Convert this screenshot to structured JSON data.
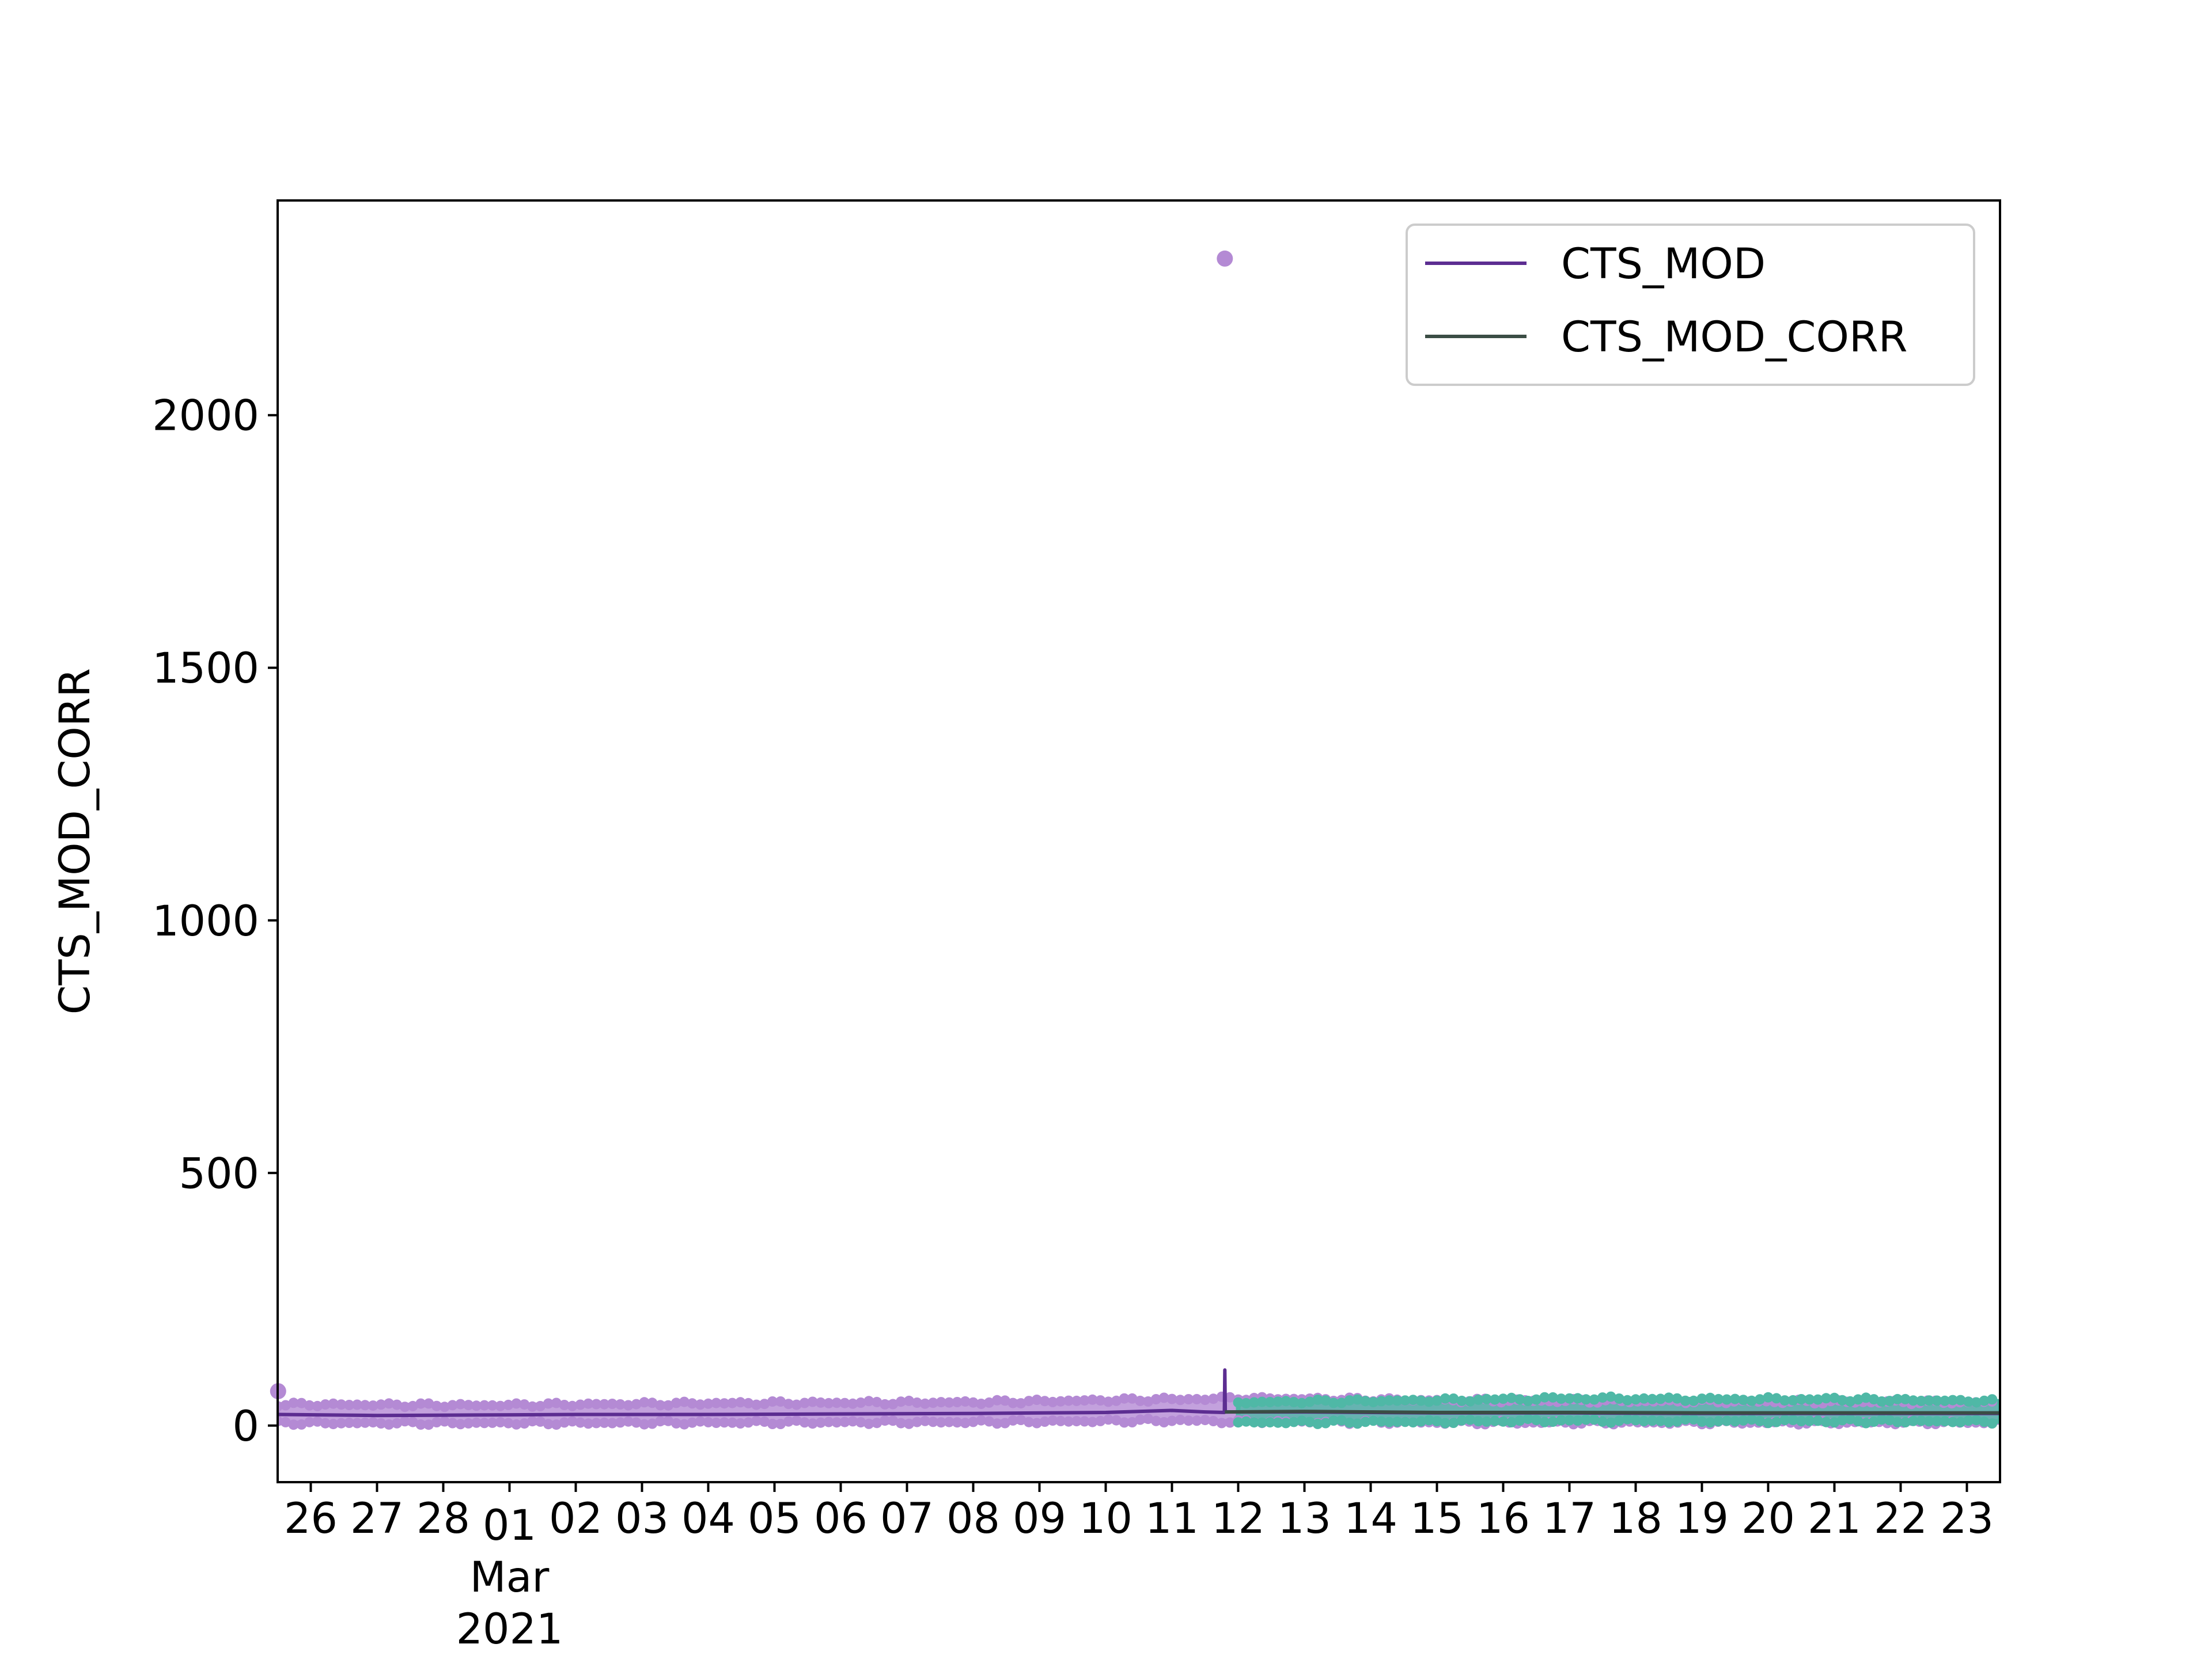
{
  "chart_data": {
    "type": "line",
    "title": "",
    "xlabel": "",
    "ylabel": "CTS_MOD_CORR",
    "x_start": "2021-02-25T12:00",
    "x_end": "2021-03-23T12:00",
    "ylim": [
      -112,
      2425
    ],
    "yticks": [
      0,
      500,
      1000,
      1500,
      2000
    ],
    "xticks": [
      {
        "date": "2021-02-26",
        "label": "26"
      },
      {
        "date": "2021-02-27",
        "label": "27"
      },
      {
        "date": "2021-02-28",
        "label": "28"
      },
      {
        "date": "2021-03-01",
        "label": "01"
      },
      {
        "date": "2021-03-02",
        "label": "02"
      },
      {
        "date": "2021-03-03",
        "label": "03"
      },
      {
        "date": "2021-03-04",
        "label": "04"
      },
      {
        "date": "2021-03-05",
        "label": "05"
      },
      {
        "date": "2021-03-06",
        "label": "06"
      },
      {
        "date": "2021-03-07",
        "label": "07"
      },
      {
        "date": "2021-03-08",
        "label": "08"
      },
      {
        "date": "2021-03-09",
        "label": "09"
      },
      {
        "date": "2021-03-10",
        "label": "10"
      },
      {
        "date": "2021-03-11",
        "label": "11"
      },
      {
        "date": "2021-03-12",
        "label": "12"
      },
      {
        "date": "2021-03-13",
        "label": "13"
      },
      {
        "date": "2021-03-14",
        "label": "14"
      },
      {
        "date": "2021-03-15",
        "label": "15"
      },
      {
        "date": "2021-03-16",
        "label": "16"
      },
      {
        "date": "2021-03-17",
        "label": "17"
      },
      {
        "date": "2021-03-18",
        "label": "18"
      },
      {
        "date": "2021-03-19",
        "label": "19"
      },
      {
        "date": "2021-03-20",
        "label": "20"
      },
      {
        "date": "2021-03-21",
        "label": "21"
      },
      {
        "date": "2021-03-22",
        "label": "22"
      },
      {
        "date": "2021-03-23",
        "label": "23"
      }
    ],
    "month_label": "Mar",
    "year_label": "2021",
    "grid": false,
    "legend_position": "upper right",
    "series": [
      {
        "name": "CTS_MOD",
        "kind": "line",
        "color": "#5c2d91",
        "points": [
          {
            "x": "2021-02-25T12:00",
            "y": 22
          },
          {
            "x": "2021-02-27T00:00",
            "y": 20
          },
          {
            "x": "2021-02-28T12:00",
            "y": 21
          },
          {
            "x": "2021-03-02T00:00",
            "y": 22
          },
          {
            "x": "2021-03-04T00:00",
            "y": 22
          },
          {
            "x": "2021-03-06T00:00",
            "y": 23
          },
          {
            "x": "2021-03-08T00:00",
            "y": 24
          },
          {
            "x": "2021-03-10T00:00",
            "y": 26
          },
          {
            "x": "2021-03-11T00:00",
            "y": 30
          },
          {
            "x": "2021-03-11T12:00",
            "y": 27
          },
          {
            "x": "2021-03-11T19:00",
            "y": 26
          },
          {
            "x": "2021-03-11T19:10",
            "y": 110
          },
          {
            "x": "2021-03-11T19:20",
            "y": 27
          },
          {
            "x": "2021-03-13T00:00",
            "y": 27
          },
          {
            "x": "2021-03-15T00:00",
            "y": 25
          },
          {
            "x": "2021-03-17T00:00",
            "y": 25
          },
          {
            "x": "2021-03-19T00:00",
            "y": 24
          },
          {
            "x": "2021-03-21T00:00",
            "y": 24
          },
          {
            "x": "2021-03-23T12:00",
            "y": 24
          }
        ]
      },
      {
        "name": "CTS_MOD_CORR",
        "kind": "line",
        "color": "#3b4d45",
        "points": [
          {
            "x": "2021-03-11T19:10",
            "y": 27
          },
          {
            "x": "2021-03-13T00:00",
            "y": 28
          },
          {
            "x": "2021-03-15T00:00",
            "y": 26
          },
          {
            "x": "2021-03-17T00:00",
            "y": 26
          },
          {
            "x": "2021-03-19T00:00",
            "y": 25
          },
          {
            "x": "2021-03-21T00:00",
            "y": 25
          },
          {
            "x": "2021-03-23T12:00",
            "y": 25
          }
        ]
      },
      {
        "kind": "band",
        "color": "#b48ad4",
        "points": [
          {
            "x": "2021-02-25T12:00",
            "low": 5,
            "high": 42
          },
          {
            "x": "2021-02-28T12:00",
            "low": 5,
            "high": 40
          },
          {
            "x": "2021-03-04T00:00",
            "low": 6,
            "high": 44
          },
          {
            "x": "2021-03-08T00:00",
            "low": 7,
            "high": 46
          },
          {
            "x": "2021-03-11T00:00",
            "low": 10,
            "high": 52
          },
          {
            "x": "2021-03-12T00:00",
            "low": 8,
            "high": 54
          },
          {
            "x": "2021-03-15T00:00",
            "low": 6,
            "high": 50
          },
          {
            "x": "2021-03-19T00:00",
            "low": 6,
            "high": 48
          },
          {
            "x": "2021-03-23T12:00",
            "low": 6,
            "high": 46
          }
        ]
      },
      {
        "kind": "band",
        "color": "#4fb8a6",
        "points": [
          {
            "x": "2021-03-12T00:00",
            "low": 6,
            "high": 46
          },
          {
            "x": "2021-03-15T00:00",
            "low": 8,
            "high": 50
          },
          {
            "x": "2021-03-17T00:00",
            "low": 10,
            "high": 54
          },
          {
            "x": "2021-03-19T00:00",
            "low": 9,
            "high": 52
          },
          {
            "x": "2021-03-21T00:00",
            "low": 9,
            "high": 52
          },
          {
            "x": "2021-03-23T12:00",
            "low": 8,
            "high": 48
          }
        ]
      },
      {
        "kind": "scatter",
        "color": "#b48ad4",
        "points": [
          {
            "x": "2021-03-11T19:10",
            "y": 2310
          },
          {
            "x": "2021-02-25T12:10",
            "y": 68
          }
        ]
      }
    ]
  }
}
